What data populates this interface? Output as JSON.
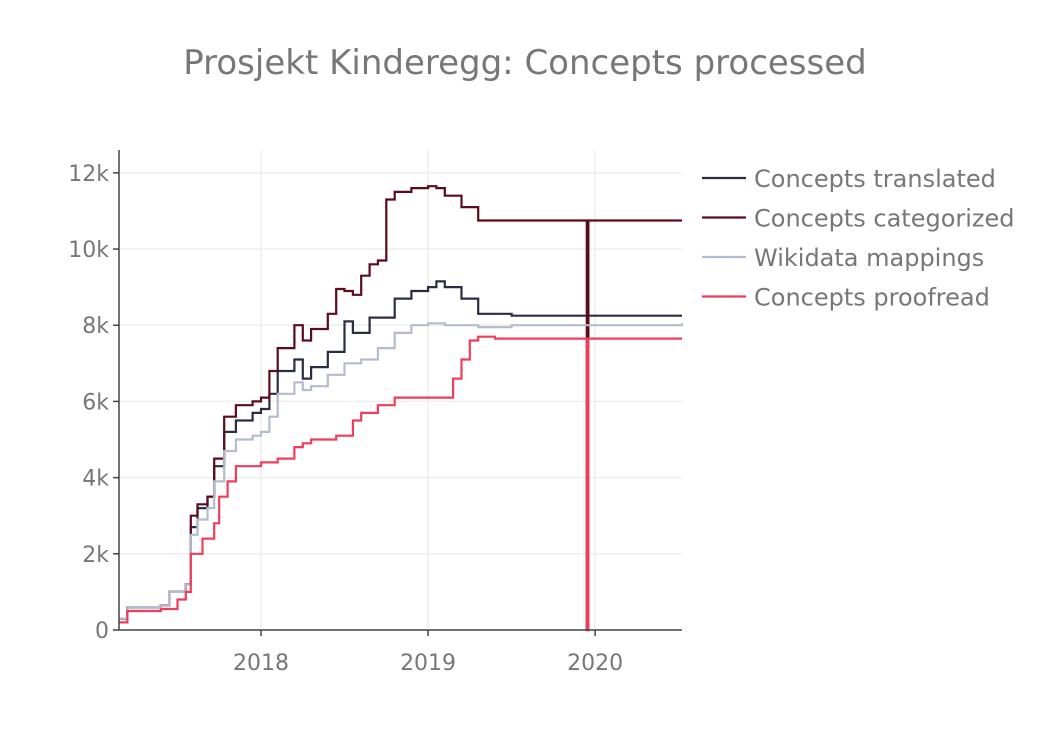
{
  "chart_data": {
    "type": "line",
    "title": "Prosjekt Kinderegg: Concepts processed",
    "xlabel": "",
    "ylabel": "",
    "xlim": [
      2017.15,
      2020.52
    ],
    "ylim": [
      0,
      12600
    ],
    "x_ticks": [
      2018,
      2019,
      2020
    ],
    "x_tick_labels": [
      "2018",
      "2019",
      "2020"
    ],
    "y_ticks": [
      0,
      2000,
      4000,
      6000,
      8000,
      10000,
      12000
    ],
    "y_tick_labels": [
      "0",
      "2k",
      "4k",
      "6k",
      "8k",
      "10k",
      "12k"
    ],
    "grid": true,
    "legend_position": "right",
    "series": [
      {
        "name": "Concepts translated",
        "color": "#2b2d42",
        "x": [
          2017.15,
          2017.2,
          2017.25,
          2017.4,
          2017.45,
          2017.55,
          2017.58,
          2017.62,
          2017.68,
          2017.72,
          2017.78,
          2017.85,
          2017.95,
          2018.0,
          2018.05,
          2018.1,
          2018.2,
          2018.25,
          2018.3,
          2018.4,
          2018.5,
          2018.55,
          2018.65,
          2018.7,
          2018.8,
          2018.9,
          2019.0,
          2019.05,
          2019.1,
          2019.2,
          2019.3,
          2019.5,
          2019.9,
          2019.95,
          2020.2,
          2020.52
        ],
        "y": [
          300,
          600,
          600,
          650,
          1000,
          1200,
          2700,
          3200,
          3500,
          4300,
          5200,
          5500,
          5700,
          5800,
          6200,
          6800,
          7100,
          6600,
          6900,
          7300,
          8100,
          7800,
          8200,
          8200,
          8700,
          8900,
          9000,
          9150,
          9000,
          8700,
          8300,
          8250,
          8250,
          8250,
          8250,
          8250
        ]
      },
      {
        "name": "Concepts categorized",
        "color": "#5c0a1e",
        "x": [
          2017.15,
          2017.2,
          2017.25,
          2017.4,
          2017.45,
          2017.55,
          2017.58,
          2017.62,
          2017.68,
          2017.72,
          2017.78,
          2017.85,
          2017.95,
          2018.0,
          2018.05,
          2018.1,
          2018.2,
          2018.25,
          2018.3,
          2018.4,
          2018.45,
          2018.5,
          2018.55,
          2018.6,
          2018.65,
          2018.7,
          2018.75,
          2018.8,
          2018.9,
          2019.0,
          2019.05,
          2019.1,
          2019.2,
          2019.3,
          2019.5,
          2019.94,
          2019.95,
          2019.96,
          2020.52
        ],
        "y": [
          300,
          600,
          600,
          650,
          1000,
          1200,
          3000,
          3300,
          3500,
          4500,
          5600,
          5900,
          6000,
          6100,
          6800,
          7400,
          8000,
          7600,
          7900,
          8300,
          8950,
          8900,
          8800,
          9300,
          9600,
          9700,
          11300,
          11500,
          11600,
          11650,
          11600,
          11400,
          11100,
          10750,
          10750,
          10750,
          0,
          10750,
          10750
        ]
      },
      {
        "name": "Wikidata mappings",
        "color": "#b4bccd",
        "x": [
          2017.15,
          2017.2,
          2017.25,
          2017.4,
          2017.45,
          2017.55,
          2017.58,
          2017.62,
          2017.68,
          2017.72,
          2017.78,
          2017.85,
          2017.95,
          2018.0,
          2018.05,
          2018.1,
          2018.2,
          2018.25,
          2018.3,
          2018.4,
          2018.5,
          2018.6,
          2018.7,
          2018.8,
          2018.9,
          2019.0,
          2019.05,
          2019.1,
          2019.2,
          2019.3,
          2019.5,
          2020.52
        ],
        "y": [
          300,
          600,
          600,
          650,
          1000,
          1200,
          2500,
          2900,
          3200,
          3900,
          4700,
          5000,
          5100,
          5200,
          5600,
          6200,
          6500,
          6300,
          6400,
          6700,
          7000,
          7100,
          7400,
          7800,
          8000,
          8050,
          8050,
          8000,
          8000,
          7950,
          8000,
          8050
        ]
      },
      {
        "name": "Concepts proofread",
        "color": "#ef3e5c",
        "x": [
          2017.15,
          2017.2,
          2017.25,
          2017.4,
          2017.5,
          2017.55,
          2017.58,
          2017.65,
          2017.72,
          2017.75,
          2017.8,
          2017.85,
          2018.0,
          2018.1,
          2018.2,
          2018.25,
          2018.3,
          2018.45,
          2018.55,
          2018.6,
          2018.7,
          2018.8,
          2019.0,
          2019.1,
          2019.15,
          2019.2,
          2019.25,
          2019.3,
          2019.4,
          2019.94,
          2019.95,
          2019.96,
          2020.52
        ],
        "y": [
          200,
          500,
          500,
          550,
          800,
          1000,
          2000,
          2400,
          2800,
          3500,
          3900,
          4300,
          4400,
          4500,
          4800,
          4900,
          5000,
          5100,
          5500,
          5700,
          5900,
          6100,
          6100,
          6100,
          6600,
          7100,
          7600,
          7700,
          7650,
          7650,
          0,
          7650,
          7650
        ]
      }
    ]
  }
}
